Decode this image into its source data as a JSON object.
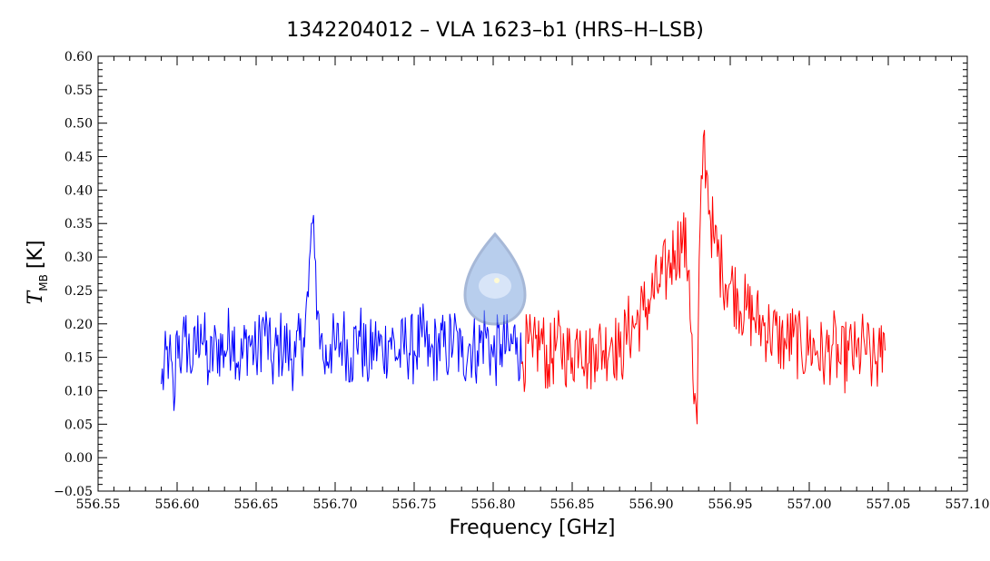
{
  "chart_data": {
    "type": "line",
    "title": "1342204012 – VLA 1623–b1 (HRS–H–LSB)",
    "xlabel": "Frequency [GHz]",
    "ylabel": {
      "symbol": "T",
      "subscript": "MB",
      "unit": "[K]"
    },
    "xlim": [
      556.55,
      557.1
    ],
    "ylim": [
      -0.05,
      0.6
    ],
    "x_ticks": [
      "556.55",
      "556.60",
      "556.65",
      "556.70",
      "556.75",
      "556.80",
      "556.85",
      "556.90",
      "556.95",
      "557.00",
      "557.05",
      "557.10"
    ],
    "y_ticks": [
      "−0.05",
      "0.00",
      "0.05",
      "0.10",
      "0.15",
      "0.20",
      "0.25",
      "0.30",
      "0.35",
      "0.40",
      "0.45",
      "0.50",
      "0.55",
      "0.60"
    ],
    "series": [
      {
        "color": "#0000ff",
        "x": [
          556.59,
          556.595,
          556.598,
          556.6,
          556.603,
          556.605,
          556.61,
          556.615,
          556.62,
          556.625,
          556.63,
          556.635,
          556.64,
          556.645,
          556.65,
          556.655,
          556.66,
          556.665,
          556.67,
          556.675,
          556.68,
          556.683,
          556.685,
          556.687,
          556.689,
          556.691,
          556.693,
          556.697,
          556.7,
          556.705,
          556.71,
          556.715,
          556.72,
          556.725,
          556.73,
          556.735,
          556.74,
          556.745,
          556.75,
          556.755,
          556.76,
          556.765,
          556.77,
          556.775,
          556.78,
          556.785,
          556.79,
          556.795,
          556.8,
          556.805,
          556.81,
          556.815,
          556.818
        ],
        "y": [
          0.11,
          0.16,
          0.07,
          0.19,
          0.15,
          0.18,
          0.14,
          0.2,
          0.13,
          0.17,
          0.16,
          0.19,
          0.14,
          0.18,
          0.15,
          0.2,
          0.14,
          0.17,
          0.16,
          0.15,
          0.18,
          0.24,
          0.35,
          0.3,
          0.22,
          0.18,
          0.14,
          0.17,
          0.16,
          0.18,
          0.15,
          0.19,
          0.14,
          0.17,
          0.16,
          0.18,
          0.15,
          0.17,
          0.16,
          0.18,
          0.15,
          0.17,
          0.16,
          0.18,
          0.15,
          0.17,
          0.16,
          0.19,
          0.15,
          0.17,
          0.16,
          0.18,
          0.14
        ]
      },
      {
        "color": "#ff0000",
        "x": [
          556.818,
          556.822,
          556.825,
          556.83,
          556.835,
          556.84,
          556.845,
          556.85,
          556.855,
          556.86,
          556.865,
          556.87,
          556.875,
          556.88,
          556.885,
          556.89,
          556.895,
          556.9,
          556.905,
          556.91,
          556.915,
          556.92,
          556.924,
          556.927,
          556.929,
          556.931,
          556.933,
          556.935,
          556.937,
          556.94,
          556.945,
          556.95,
          556.955,
          556.96,
          556.965,
          556.97,
          556.975,
          556.98,
          556.985,
          556.99,
          556.995,
          557.0,
          557.005,
          557.01,
          557.015,
          557.02,
          557.025,
          557.03,
          557.035,
          557.04,
          557.045,
          557.048
        ],
        "y": [
          0.14,
          0.17,
          0.15,
          0.18,
          0.14,
          0.17,
          0.16,
          0.15,
          0.19,
          0.14,
          0.17,
          0.16,
          0.18,
          0.15,
          0.19,
          0.2,
          0.22,
          0.24,
          0.26,
          0.28,
          0.31,
          0.33,
          0.28,
          0.08,
          0.05,
          0.35,
          0.48,
          0.43,
          0.37,
          0.32,
          0.28,
          0.26,
          0.24,
          0.22,
          0.21,
          0.2,
          0.19,
          0.18,
          0.17,
          0.18,
          0.16,
          0.17,
          0.16,
          0.15,
          0.17,
          0.14,
          0.16,
          0.15,
          0.17,
          0.14,
          0.15,
          0.16
        ]
      }
    ],
    "legend": "none",
    "grid": false
  }
}
